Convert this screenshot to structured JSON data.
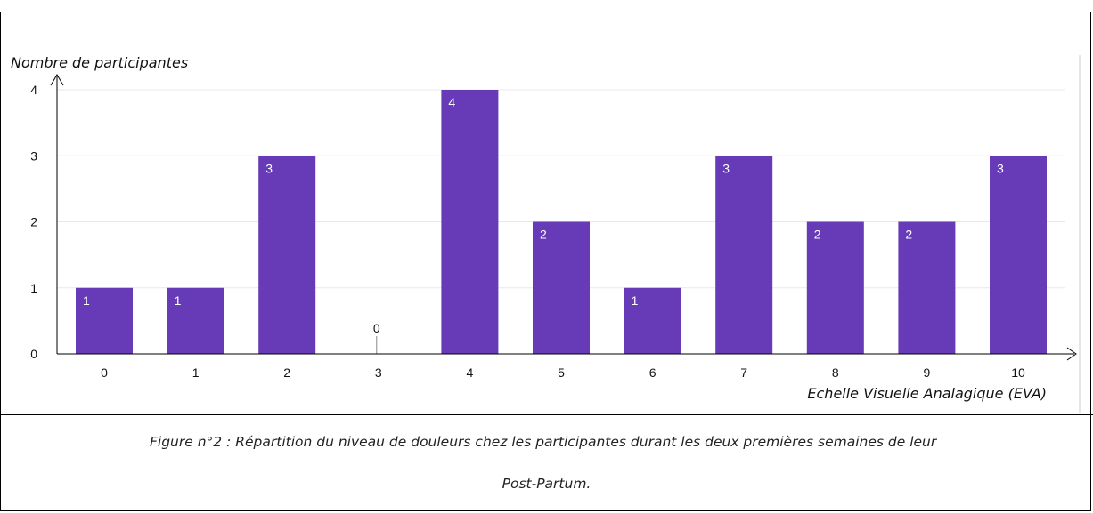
{
  "chart_data": {
    "type": "bar",
    "categories": [
      "0",
      "1",
      "2",
      "3",
      "4",
      "5",
      "6",
      "7",
      "8",
      "9",
      "10"
    ],
    "values": [
      1,
      1,
      3,
      0,
      4,
      2,
      1,
      3,
      2,
      2,
      3
    ],
    "data_labels": [
      "1",
      "1",
      "3",
      "0",
      "4",
      "2",
      "1",
      "3",
      "2",
      "2",
      "3"
    ],
    "yticks": [
      "0",
      "1",
      "2",
      "3",
      "4"
    ],
    "xlabel": "Echelle Visuelle Analagique (EVA)",
    "ylabel": "Nombre de participantes",
    "ylim": [
      0,
      4
    ],
    "grid": true,
    "colors": {
      "bar": "#673ab7",
      "grid": "#e8e8e8",
      "axis": "#000000"
    }
  },
  "caption": {
    "line1": "Figure n°2 : Répartition du niveau de douleurs chez les participantes durant les deux premières semaines de leur",
    "line2": "Post-Partum."
  }
}
